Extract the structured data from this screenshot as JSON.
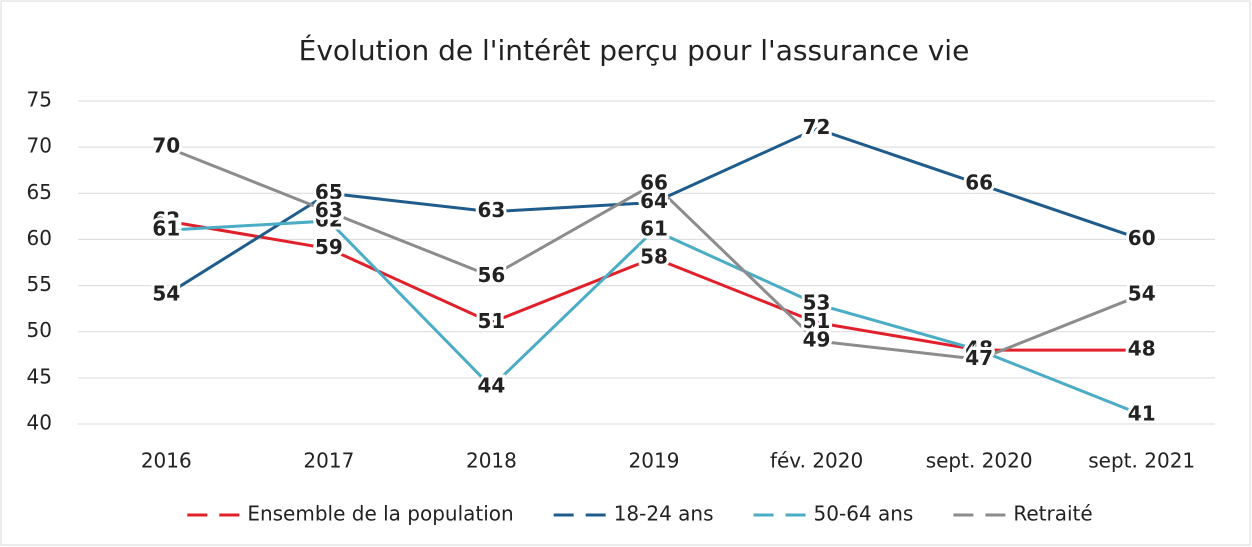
{
  "chart_data": {
    "type": "line",
    "title": "Évolution de l'intérêt perçu pour l'assurance vie",
    "categories": [
      "2016",
      "2017",
      "2018",
      "2019",
      "fév. 2020",
      "sept. 2020",
      "sept. 2021"
    ],
    "series": [
      {
        "name": "Ensemble de la population",
        "color": "#e0202a",
        "values": [
          62,
          59,
          51,
          58,
          51,
          48,
          48
        ]
      },
      {
        "name": "18-24 ans",
        "color": "#1f5c8b",
        "values": [
          54,
          65,
          63,
          64,
          72,
          66,
          60
        ]
      },
      {
        "name": "50-64 ans",
        "color": "#4bacc6",
        "values": [
          61,
          62,
          44,
          61,
          53,
          48,
          41
        ]
      },
      {
        "name": "Retraité",
        "color": "#8c8c8c",
        "values": [
          70,
          63,
          56,
          66,
          49,
          47,
          54
        ]
      }
    ],
    "ylim": [
      40,
      75
    ],
    "yticks": [
      40,
      45,
      50,
      55,
      60,
      65,
      70,
      75
    ],
    "grid": true,
    "legend": "bottom"
  }
}
